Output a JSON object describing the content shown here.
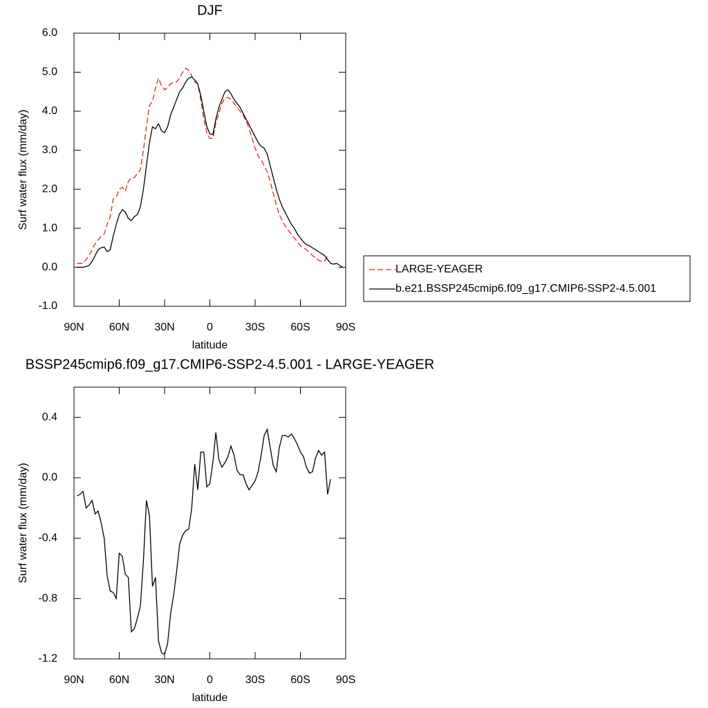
{
  "chart_data": [
    {
      "type": "line",
      "title": "DJF",
      "xlabel": "latitude",
      "ylabel": "Surf water flux (mm/day)",
      "x": [
        88,
        86,
        84,
        82,
        80,
        78,
        76,
        74,
        72,
        70,
        68,
        66,
        64,
        62,
        60,
        58,
        56,
        54,
        52,
        50,
        48,
        46,
        44,
        42,
        40,
        38,
        36,
        34,
        32,
        30,
        28,
        26,
        24,
        22,
        20,
        18,
        16,
        14,
        12,
        10,
        8,
        6,
        4,
        2,
        0,
        -2,
        -4,
        -6,
        -8,
        -10,
        -12,
        -14,
        -16,
        -18,
        -20,
        -22,
        -24,
        -26,
        -28,
        -30,
        -32,
        -34,
        -36,
        -38,
        -40,
        -42,
        -44,
        -46,
        -48,
        -50,
        -52,
        -54,
        -56,
        -58,
        -60,
        -62,
        -64,
        -66,
        -68,
        -70,
        -72,
        -74,
        -76,
        -78,
        -80,
        -82,
        -84,
        -86,
        -88
      ],
      "series": [
        {
          "name": "LARGE-YEAGER",
          "color": "#e8201a",
          "line_style": "dashed",
          "values": [
            0.1,
            0.1,
            0.1,
            0.2,
            0.3,
            0.45,
            0.6,
            0.7,
            0.8,
            0.85,
            1.1,
            1.3,
            1.75,
            1.8,
            2.0,
            2.05,
            1.95,
            2.2,
            2.3,
            2.3,
            2.4,
            2.5,
            3.0,
            3.6,
            4.15,
            4.25,
            4.6,
            4.85,
            4.65,
            4.55,
            4.6,
            4.7,
            4.75,
            4.75,
            4.85,
            5.0,
            5.1,
            5.05,
            4.9,
            4.75,
            4.7,
            4.3,
            3.8,
            3.45,
            3.3,
            3.3,
            3.7,
            3.95,
            4.2,
            4.35,
            4.35,
            4.3,
            4.2,
            4.1,
            4.0,
            3.9,
            3.75,
            3.55,
            3.3,
            3.05,
            2.85,
            2.75,
            2.6,
            2.45,
            2.2,
            1.9,
            1.6,
            1.35,
            1.2,
            1.05,
            0.95,
            0.85,
            0.75,
            0.65,
            0.55,
            0.5,
            0.45,
            0.38,
            0.3,
            0.25,
            0.18,
            0.15,
            0.15,
            0.3,
            null,
            null,
            null,
            null,
            null
          ]
        },
        {
          "name": "b.e21.BSSP245cmip6.f09_g17.CMIP6-SSP2-4.5.001",
          "color": "#000000",
          "line_style": "solid",
          "values": [
            0.0,
            0.0,
            0.0,
            0.02,
            0.05,
            0.15,
            0.3,
            0.45,
            0.5,
            0.52,
            0.4,
            0.45,
            0.8,
            1.1,
            1.35,
            1.48,
            1.42,
            1.25,
            1.2,
            1.3,
            1.35,
            1.55,
            2.0,
            2.6,
            3.2,
            3.6,
            3.55,
            3.68,
            3.5,
            3.45,
            3.6,
            3.9,
            4.1,
            4.3,
            4.5,
            4.6,
            4.75,
            4.85,
            4.88,
            4.8,
            4.7,
            4.4,
            4.0,
            3.6,
            3.42,
            3.4,
            3.8,
            4.1,
            4.3,
            4.5,
            4.55,
            4.45,
            4.3,
            4.2,
            4.1,
            3.95,
            3.8,
            3.65,
            3.5,
            3.35,
            3.2,
            3.1,
            3.05,
            2.9,
            2.6,
            2.3,
            2.0,
            1.75,
            1.55,
            1.4,
            1.25,
            1.1,
            1.0,
            0.85,
            0.75,
            0.65,
            0.58,
            0.55,
            0.5,
            0.45,
            0.4,
            0.35,
            0.3,
            0.2,
            0.1,
            0.08,
            0.1,
            0.05,
            0.0
          ]
        }
      ],
      "xlim": [
        90,
        -90
      ],
      "xticks": [
        {
          "value": 90,
          "label": "90N"
        },
        {
          "value": 60,
          "label": "60N"
        },
        {
          "value": 30,
          "label": "30N"
        },
        0,
        {
          "value": -30,
          "label": "30S"
        },
        {
          "value": -60,
          "label": "60S"
        },
        {
          "value": -90,
          "label": "90S"
        }
      ],
      "ylim": [
        -1,
        6
      ],
      "yticks": [
        {
          "value": 6,
          "label": "6.0"
        },
        {
          "value": 5,
          "label": "5.0"
        },
        {
          "value": 4,
          "label": "4.0"
        },
        {
          "value": 3,
          "label": "3.0"
        },
        {
          "value": 2,
          "label": "2.0"
        },
        {
          "value": 1,
          "label": "1.0"
        },
        {
          "value": 0,
          "label": "0.0"
        },
        {
          "value": -1,
          "label": "-1.0"
        }
      ],
      "legend": "right"
    },
    {
      "type": "line",
      "title": "BSSP245cmip6.f09_g17.CMIP6-SSP2-4.5.001 - LARGE-YEAGER",
      "xlabel": "latitude",
      "ylabel": "Surf water flux (mm/day)",
      "x": [
        88,
        86,
        84,
        82,
        80,
        78,
        76,
        74,
        72,
        70,
        68,
        66,
        64,
        62,
        60,
        58,
        56,
        54,
        52,
        50,
        48,
        46,
        44,
        42,
        40,
        38,
        36,
        34,
        32,
        30,
        28,
        26,
        24,
        22,
        20,
        18,
        16,
        14,
        12,
        10,
        8,
        6,
        4,
        2,
        0,
        -2,
        -4,
        -6,
        -8,
        -10,
        -12,
        -14,
        -16,
        -18,
        -20,
        -22,
        -24,
        -26,
        -28,
        -30,
        -32,
        -34,
        -36,
        -38,
        -40,
        -42,
        -44,
        -46,
        -48,
        -50,
        -52,
        -54,
        -56,
        -58,
        -60,
        -62,
        -64,
        -66,
        -68,
        -70,
        -72,
        -74,
        -76,
        -78,
        -80
      ],
      "series": [
        {
          "color": "#000000",
          "line_style": "solid",
          "values": [
            -0.12,
            -0.11,
            -0.09,
            -0.2,
            -0.18,
            -0.15,
            -0.24,
            -0.22,
            -0.3,
            -0.4,
            -0.65,
            -0.75,
            -0.76,
            -0.8,
            -0.5,
            -0.52,
            -0.64,
            -0.66,
            -1.02,
            -1.0,
            -0.93,
            -0.85,
            -0.55,
            -0.15,
            -0.25,
            -0.72,
            -0.66,
            -1.08,
            -1.16,
            -1.17,
            -1.1,
            -0.9,
            -0.78,
            -0.62,
            -0.44,
            -0.38,
            -0.35,
            -0.34,
            -0.2,
            0.09,
            -0.08,
            0.17,
            0.17,
            -0.06,
            -0.04,
            0.1,
            0.3,
            0.12,
            0.07,
            0.1,
            0.14,
            0.21,
            0.15,
            0.05,
            0.02,
            0.02,
            -0.04,
            -0.08,
            -0.05,
            -0.02,
            0.04,
            0.15,
            0.28,
            0.32,
            0.2,
            0.08,
            0.04,
            0.2,
            0.28,
            0.28,
            0.27,
            0.29,
            0.26,
            0.22,
            0.17,
            0.14,
            0.07,
            0.03,
            0.04,
            0.13,
            0.18,
            0.15,
            0.17,
            -0.11,
            -0.01
          ]
        }
      ],
      "xlim": [
        90,
        -90
      ],
      "xticks": [
        {
          "value": 90,
          "label": "90N"
        },
        {
          "value": 60,
          "label": "60N"
        },
        {
          "value": 30,
          "label": "30N"
        },
        0,
        {
          "value": -30,
          "label": "30S"
        },
        {
          "value": -60,
          "label": "60S"
        },
        {
          "value": -90,
          "label": "90S"
        }
      ],
      "ylim": [
        -1.2,
        0.6
      ],
      "yticks": [
        0.4,
        {
          "value": 0,
          "label": "0.0"
        },
        -0.4,
        -0.8,
        -1.2
      ]
    }
  ]
}
